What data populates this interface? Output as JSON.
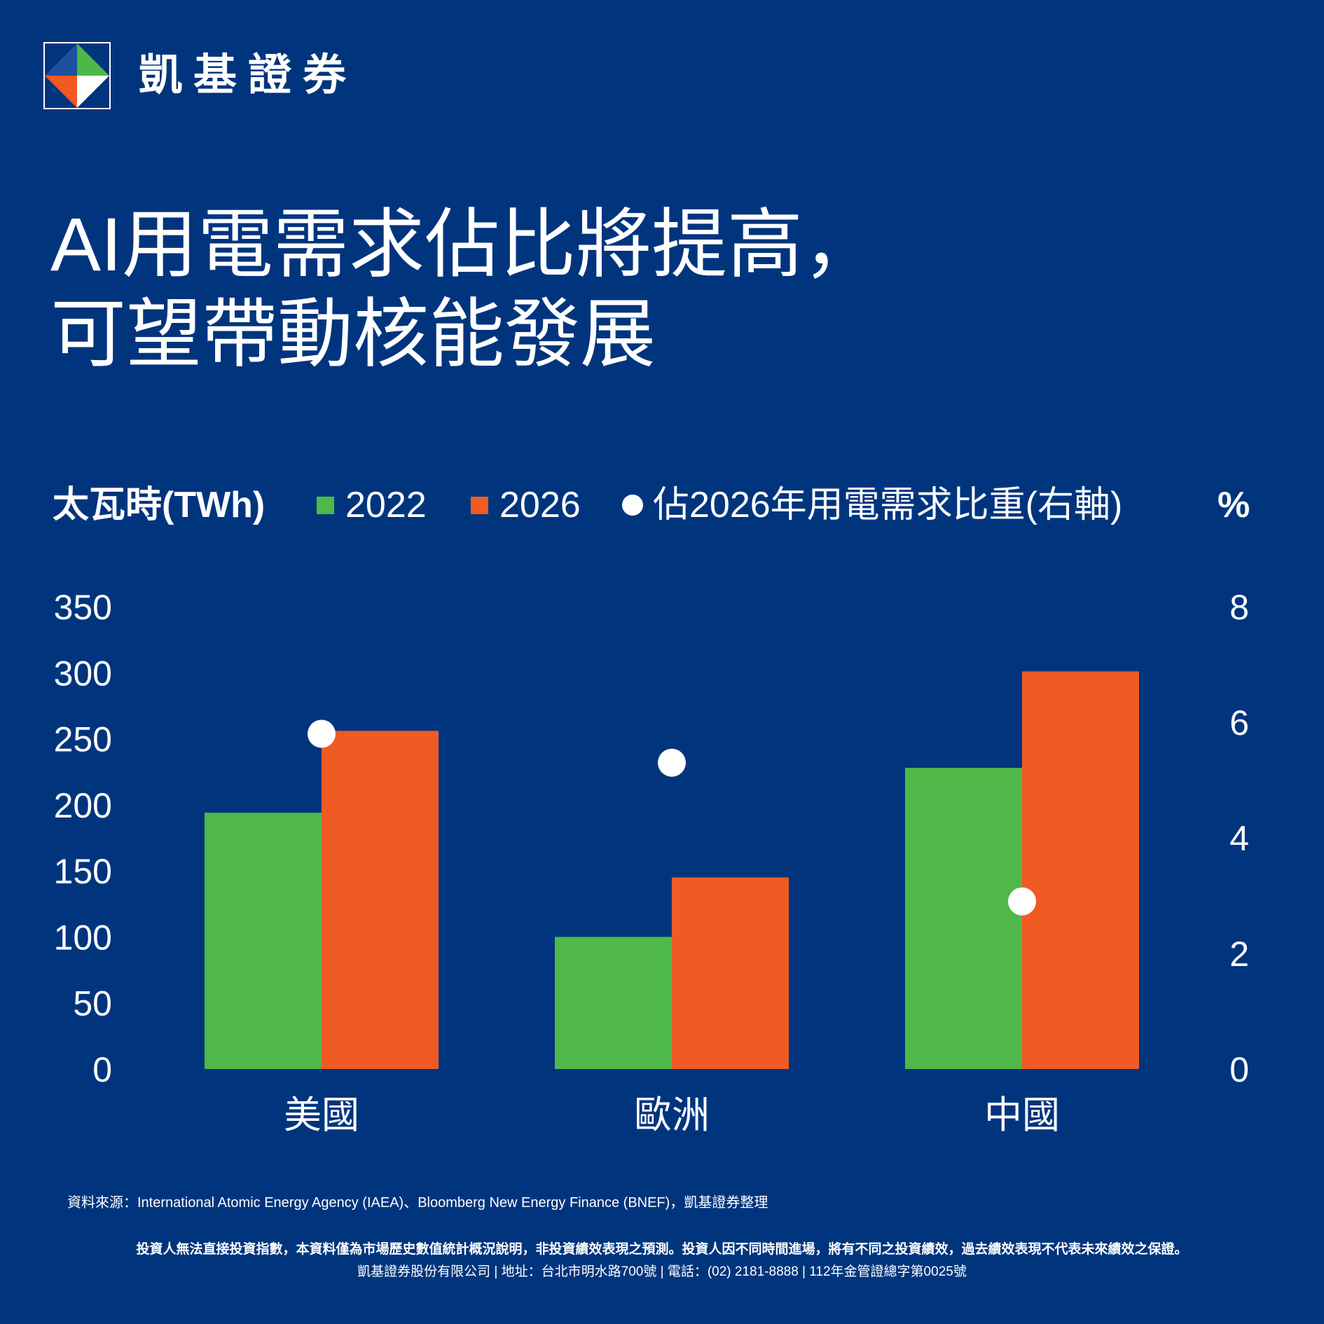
{
  "brand": {
    "name": "凱基證券",
    "logo_icon": "diamond-logo-icon",
    "logo_colors": [
      "#4cb848",
      "#f15a22",
      "#1e4fa0",
      "#ffffff"
    ]
  },
  "title": {
    "line1": "AI用電需求佔比將提高，",
    "line2": "可望帶動核能發展"
  },
  "legend": {
    "left_unit": "太瓦時(TWh)",
    "right_unit": "%",
    "item_2022": "2022",
    "item_2026": "2026",
    "item_share": "佔2026年用電需求比重(右軸)"
  },
  "chart_data": {
    "type": "bar",
    "categories": [
      "美國",
      "歐洲",
      "中國"
    ],
    "series": [
      {
        "name": "2022",
        "values": [
          194,
          100,
          228
        ],
        "color": "#4fb848"
      },
      {
        "name": "2026",
        "values": [
          256,
          145,
          301
        ],
        "color": "#f05a23"
      }
    ],
    "overlay_series": {
      "name": "佔2026年用電需求比重(右軸)",
      "type": "scatter",
      "axis": "right",
      "values": [
        5.8,
        5.3,
        2.9
      ],
      "color": "#ffffff"
    },
    "ylim": [
      0,
      350
    ],
    "yticks": [
      0,
      50,
      100,
      150,
      200,
      250,
      300,
      350
    ],
    "y2lim": [
      0,
      8
    ],
    "y2ticks": [
      0,
      2,
      4,
      6,
      8
    ],
    "grid": false,
    "legend_position": "top"
  },
  "footer": {
    "source": "資料來源：International Atomic Energy Agency (IAEA)、Bloomberg New Energy Finance (BNEF)，凱基證券整理",
    "disclaimer": "投資人無法直接投資指數，本資料僅為市場歷史數值統計概況說明，非投資績效表現之預測。投資人因不同時間進場，將有不同之投資績效，過去績效表現不代表未來績效之保證。",
    "company": "凱基證券股份有限公司 | 地址：台北市明水路700號 | 電話：(02) 2181-8888 | 112年金管證總字第0025號"
  }
}
